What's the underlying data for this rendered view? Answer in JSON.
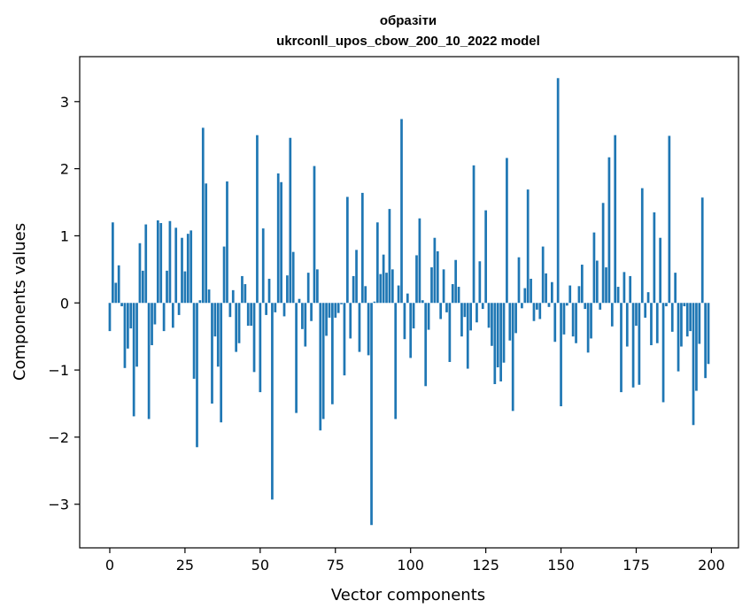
{
  "chart_data": {
    "type": "bar",
    "title": "образіти",
    "subtitle": "ukrconll_upos_cbow_200_10_2022 model",
    "xlabel": "Vector components",
    "ylabel": "Components values",
    "xlim": [
      -10,
      209
    ],
    "ylim": [
      -3.65,
      3.67
    ],
    "xticks": [
      0,
      25,
      50,
      75,
      100,
      125,
      150,
      175,
      200
    ],
    "yticks": [
      -3,
      -2,
      -1,
      0,
      1,
      2,
      3
    ],
    "grid": false,
    "color": "#1f77b4",
    "x": [
      0,
      1,
      2,
      3,
      4,
      5,
      6,
      7,
      8,
      9,
      10,
      11,
      12,
      13,
      14,
      15,
      16,
      17,
      18,
      19,
      20,
      21,
      22,
      23,
      24,
      25,
      26,
      27,
      28,
      29,
      30,
      31,
      32,
      33,
      34,
      35,
      36,
      37,
      38,
      39,
      40,
      41,
      42,
      43,
      44,
      45,
      46,
      47,
      48,
      49,
      50,
      51,
      52,
      53,
      54,
      55,
      56,
      57,
      58,
      59,
      60,
      61,
      62,
      63,
      64,
      65,
      66,
      67,
      68,
      69,
      70,
      71,
      72,
      73,
      74,
      75,
      76,
      77,
      78,
      79,
      80,
      81,
      82,
      83,
      84,
      85,
      86,
      87,
      88,
      89,
      90,
      91,
      92,
      93,
      94,
      95,
      96,
      97,
      98,
      99,
      100,
      101,
      102,
      103,
      104,
      105,
      106,
      107,
      108,
      109,
      110,
      111,
      112,
      113,
      114,
      115,
      116,
      117,
      118,
      119,
      120,
      121,
      122,
      123,
      124,
      125,
      126,
      127,
      128,
      129,
      130,
      131,
      132,
      133,
      134,
      135,
      136,
      137,
      138,
      139,
      140,
      141,
      142,
      143,
      144,
      145,
      146,
      147,
      148,
      149,
      150,
      151,
      152,
      153,
      154,
      155,
      156,
      157,
      158,
      159,
      160,
      161,
      162,
      163,
      164,
      165,
      166,
      167,
      168,
      169,
      170,
      171,
      172,
      173,
      174,
      175,
      176,
      177,
      178,
      179,
      180,
      181,
      182,
      183,
      184,
      185,
      186,
      187,
      188,
      189,
      190,
      191,
      192,
      193,
      194,
      195,
      196,
      197,
      198,
      199
    ],
    "values": [
      -0.42,
      1.2,
      0.3,
      0.56,
      -0.05,
      -0.97,
      -0.68,
      -0.38,
      -1.69,
      -0.95,
      0.89,
      0.48,
      1.17,
      -1.73,
      -0.63,
      -0.32,
      1.23,
      1.19,
      -0.42,
      0.48,
      1.22,
      -0.37,
      1.12,
      -0.18,
      0.97,
      0.47,
      1.03,
      1.08,
      -1.13,
      -2.15,
      0.04,
      2.61,
      1.78,
      0.2,
      -1.5,
      -0.5,
      -0.95,
      -1.78,
      0.84,
      1.81,
      -0.21,
      0.19,
      -0.73,
      -0.6,
      0.4,
      0.28,
      -0.34,
      -0.34,
      -1.03,
      2.5,
      -1.33,
      1.11,
      -0.18,
      0.36,
      -2.93,
      -0.14,
      1.93,
      1.8,
      -0.2,
      0.41,
      2.46,
      0.76,
      -1.64,
      0.06,
      -0.39,
      -0.65,
      0.45,
      -0.27,
      2.04,
      0.5,
      -1.9,
      -1.73,
      -0.49,
      -0.22,
      -1.51,
      -0.22,
      -0.15,
      -0.02,
      -1.08,
      1.58,
      -0.53,
      0.4,
      0.79,
      -0.73,
      1.64,
      0.25,
      -0.78,
      -3.31,
      0.02,
      1.2,
      0.43,
      0.72,
      0.45,
      1.4,
      0.5,
      -1.73,
      0.26,
      2.74,
      -0.54,
      0.14,
      -0.82,
      -0.38,
      0.71,
      1.26,
      0.04,
      -1.24,
      -0.4,
      0.53,
      0.97,
      0.77,
      -0.24,
      0.5,
      -0.14,
      -0.88,
      0.28,
      0.64,
      0.24,
      -0.5,
      -0.21,
      -0.98,
      -0.41,
      2.05,
      -0.29,
      0.62,
      -0.09,
      1.38,
      -0.37,
      -0.64,
      -1.21,
      -0.96,
      -1.17,
      -0.89,
      2.16,
      -0.56,
      -1.61,
      -0.45,
      0.68,
      -0.08,
      0.22,
      1.69,
      0.36,
      -0.27,
      -0.1,
      -0.24,
      0.84,
      0.44,
      -0.06,
      0.31,
      -0.58,
      3.35,
      -1.54,
      -0.47,
      -0.04,
      0.26,
      -0.5,
      -0.6,
      0.25,
      0.57,
      -0.09,
      -0.74,
      -0.53,
      1.05,
      0.63,
      -0.1,
      1.49,
      0.53,
      2.17,
      -0.35,
      2.5,
      0.24,
      -1.33,
      0.46,
      -0.65,
      0.4,
      -1.26,
      -0.34,
      -1.22,
      1.71,
      -0.22,
      0.16,
      -0.63,
      1.35,
      -0.6,
      0.97,
      -1.48,
      -0.05,
      2.49,
      -0.43,
      0.45,
      -1.02,
      -0.65,
      -0.05,
      -0.5,
      -0.42,
      -1.82,
      -1.31,
      -0.61,
      1.57,
      -1.12,
      -0.91
    ]
  }
}
